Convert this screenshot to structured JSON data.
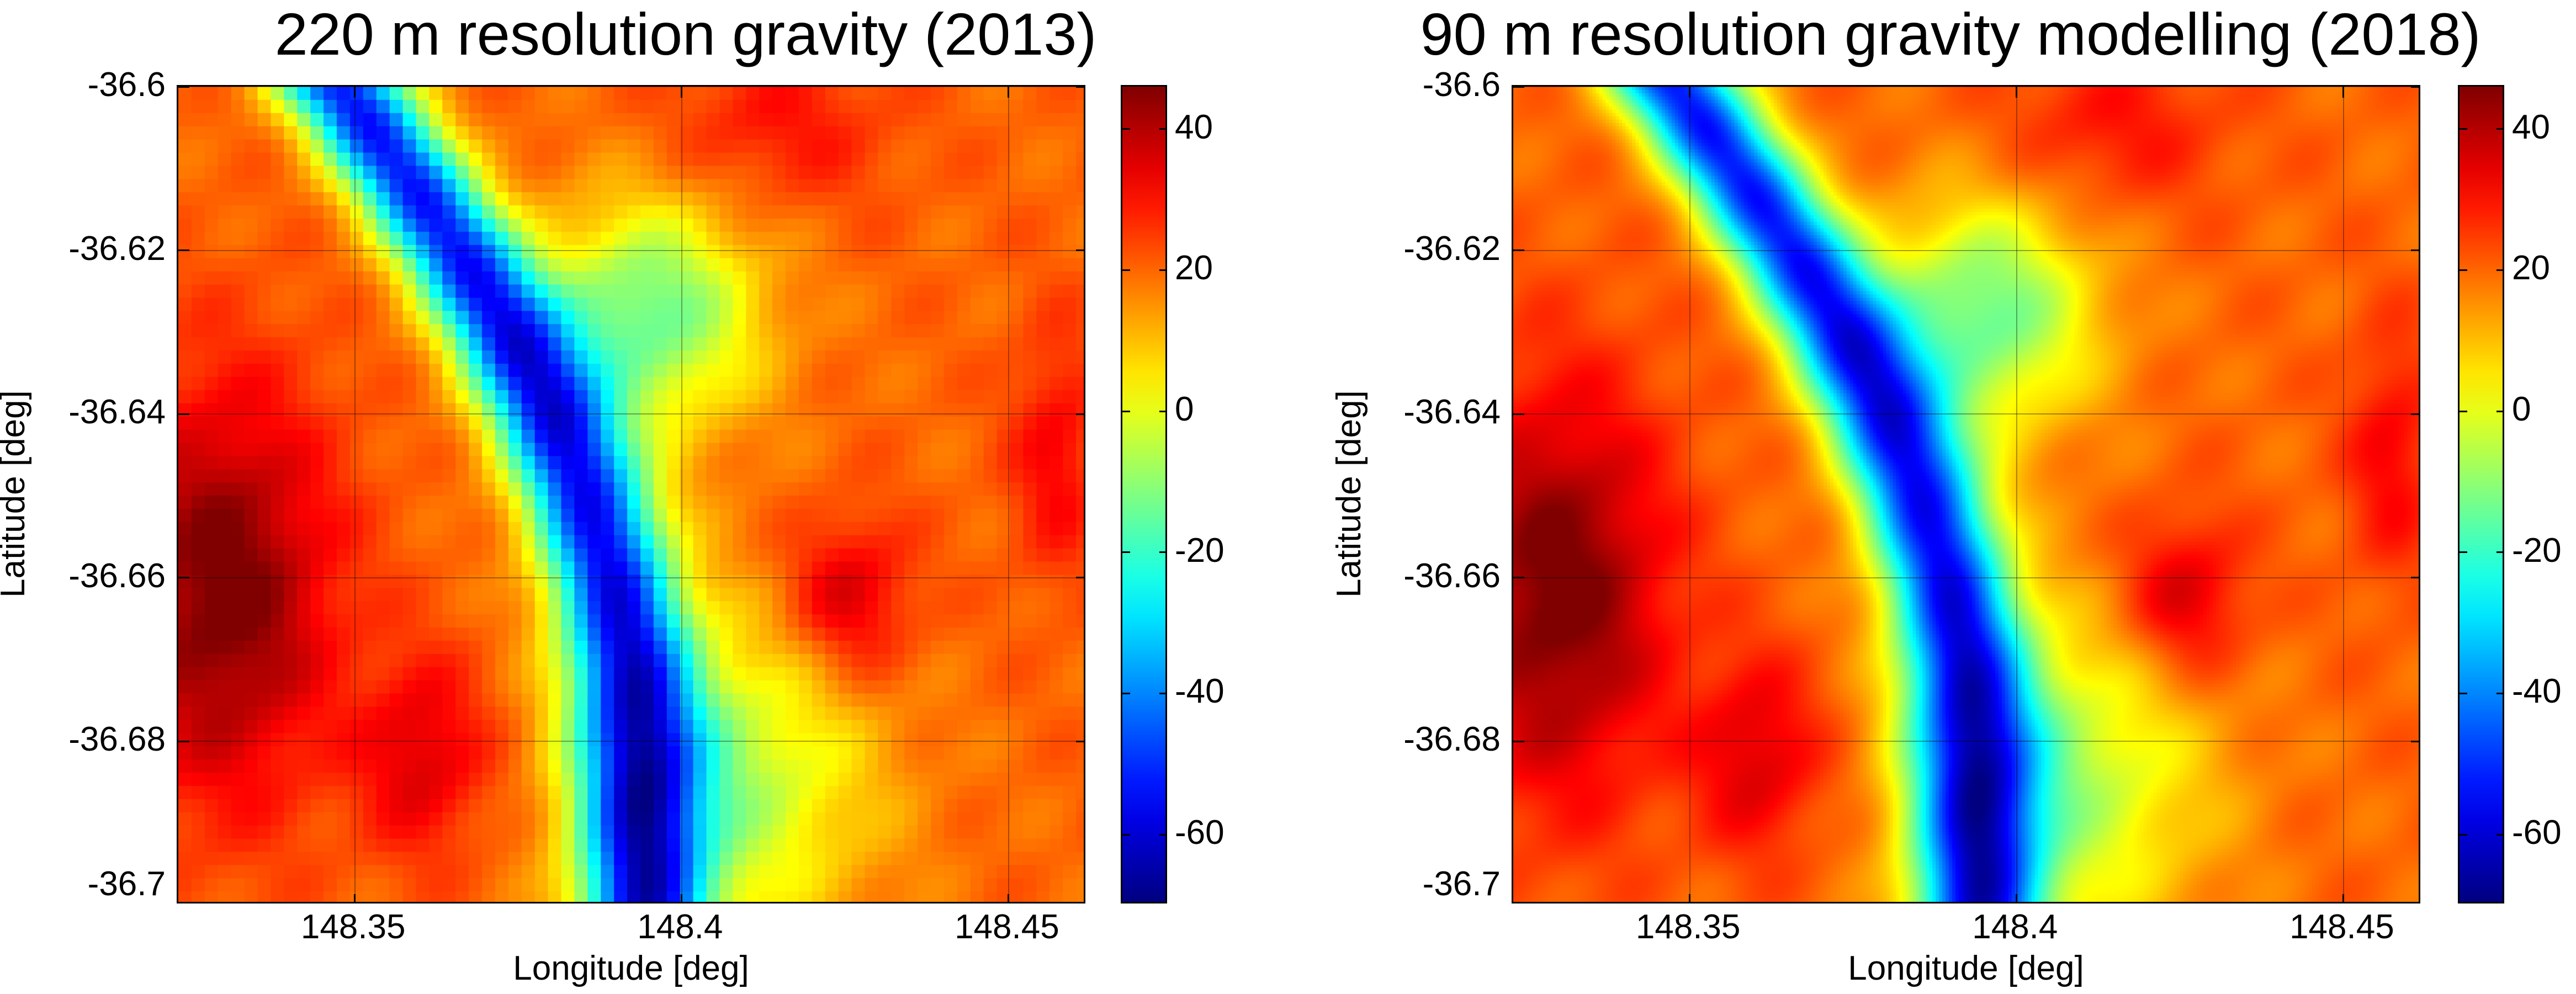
{
  "chart_data": [
    {
      "type": "heatmap",
      "title": "220 m resolution gravity (2013)",
      "xlabel": "Longitude [deg]",
      "ylabel": "Latitude [deg]",
      "x_ticks": [
        "148.35",
        "148.4",
        "148.45"
      ],
      "x_tick_values": [
        148.35,
        148.4,
        148.45
      ],
      "y_ticks": [
        "-36.6",
        "-36.62",
        "-36.64",
        "-36.66",
        "-36.68",
        "-36.7"
      ],
      "y_tick_values": [
        -36.6,
        -36.62,
        -36.64,
        -36.66,
        -36.68,
        -36.7
      ],
      "xlim": [
        148.323,
        148.462
      ],
      "ylim": [
        -36.7,
        -36.6
      ],
      "grid": true,
      "colormap": "jet",
      "colorbar_ticks": [
        "40",
        "20",
        "0",
        "-20",
        "-40",
        "-60"
      ],
      "colorbar_tick_values": [
        40,
        20,
        0,
        -20,
        -40,
        -60
      ],
      "clim": [
        -70,
        46
      ],
      "grid_resolution": "220 m",
      "pixelated": true
    },
    {
      "type": "heatmap",
      "title": "90 m resolution gravity modelling (2018)",
      "xlabel": "Longitude [deg]",
      "ylabel": "Latitude [deg]",
      "x_ticks": [
        "148.35",
        "148.4",
        "148.45"
      ],
      "x_tick_values": [
        148.35,
        148.4,
        148.45
      ],
      "y_ticks": [
        "-36.6",
        "-36.62",
        "-36.64",
        "-36.66",
        "-36.68",
        "-36.7"
      ],
      "y_tick_values": [
        -36.6,
        -36.62,
        -36.64,
        -36.66,
        -36.68,
        -36.7
      ],
      "xlim": [
        148.323,
        148.462
      ],
      "ylim": [
        -36.7,
        -36.6
      ],
      "grid": true,
      "colormap": "jet",
      "colorbar_ticks": [
        "40",
        "20",
        "0",
        "-20",
        "-40",
        "-60"
      ],
      "colorbar_tick_values": [
        40,
        20,
        0,
        -20,
        -40,
        -60
      ],
      "clim": [
        -70,
        46
      ],
      "grid_resolution": "90 m",
      "pixelated": false
    }
  ]
}
